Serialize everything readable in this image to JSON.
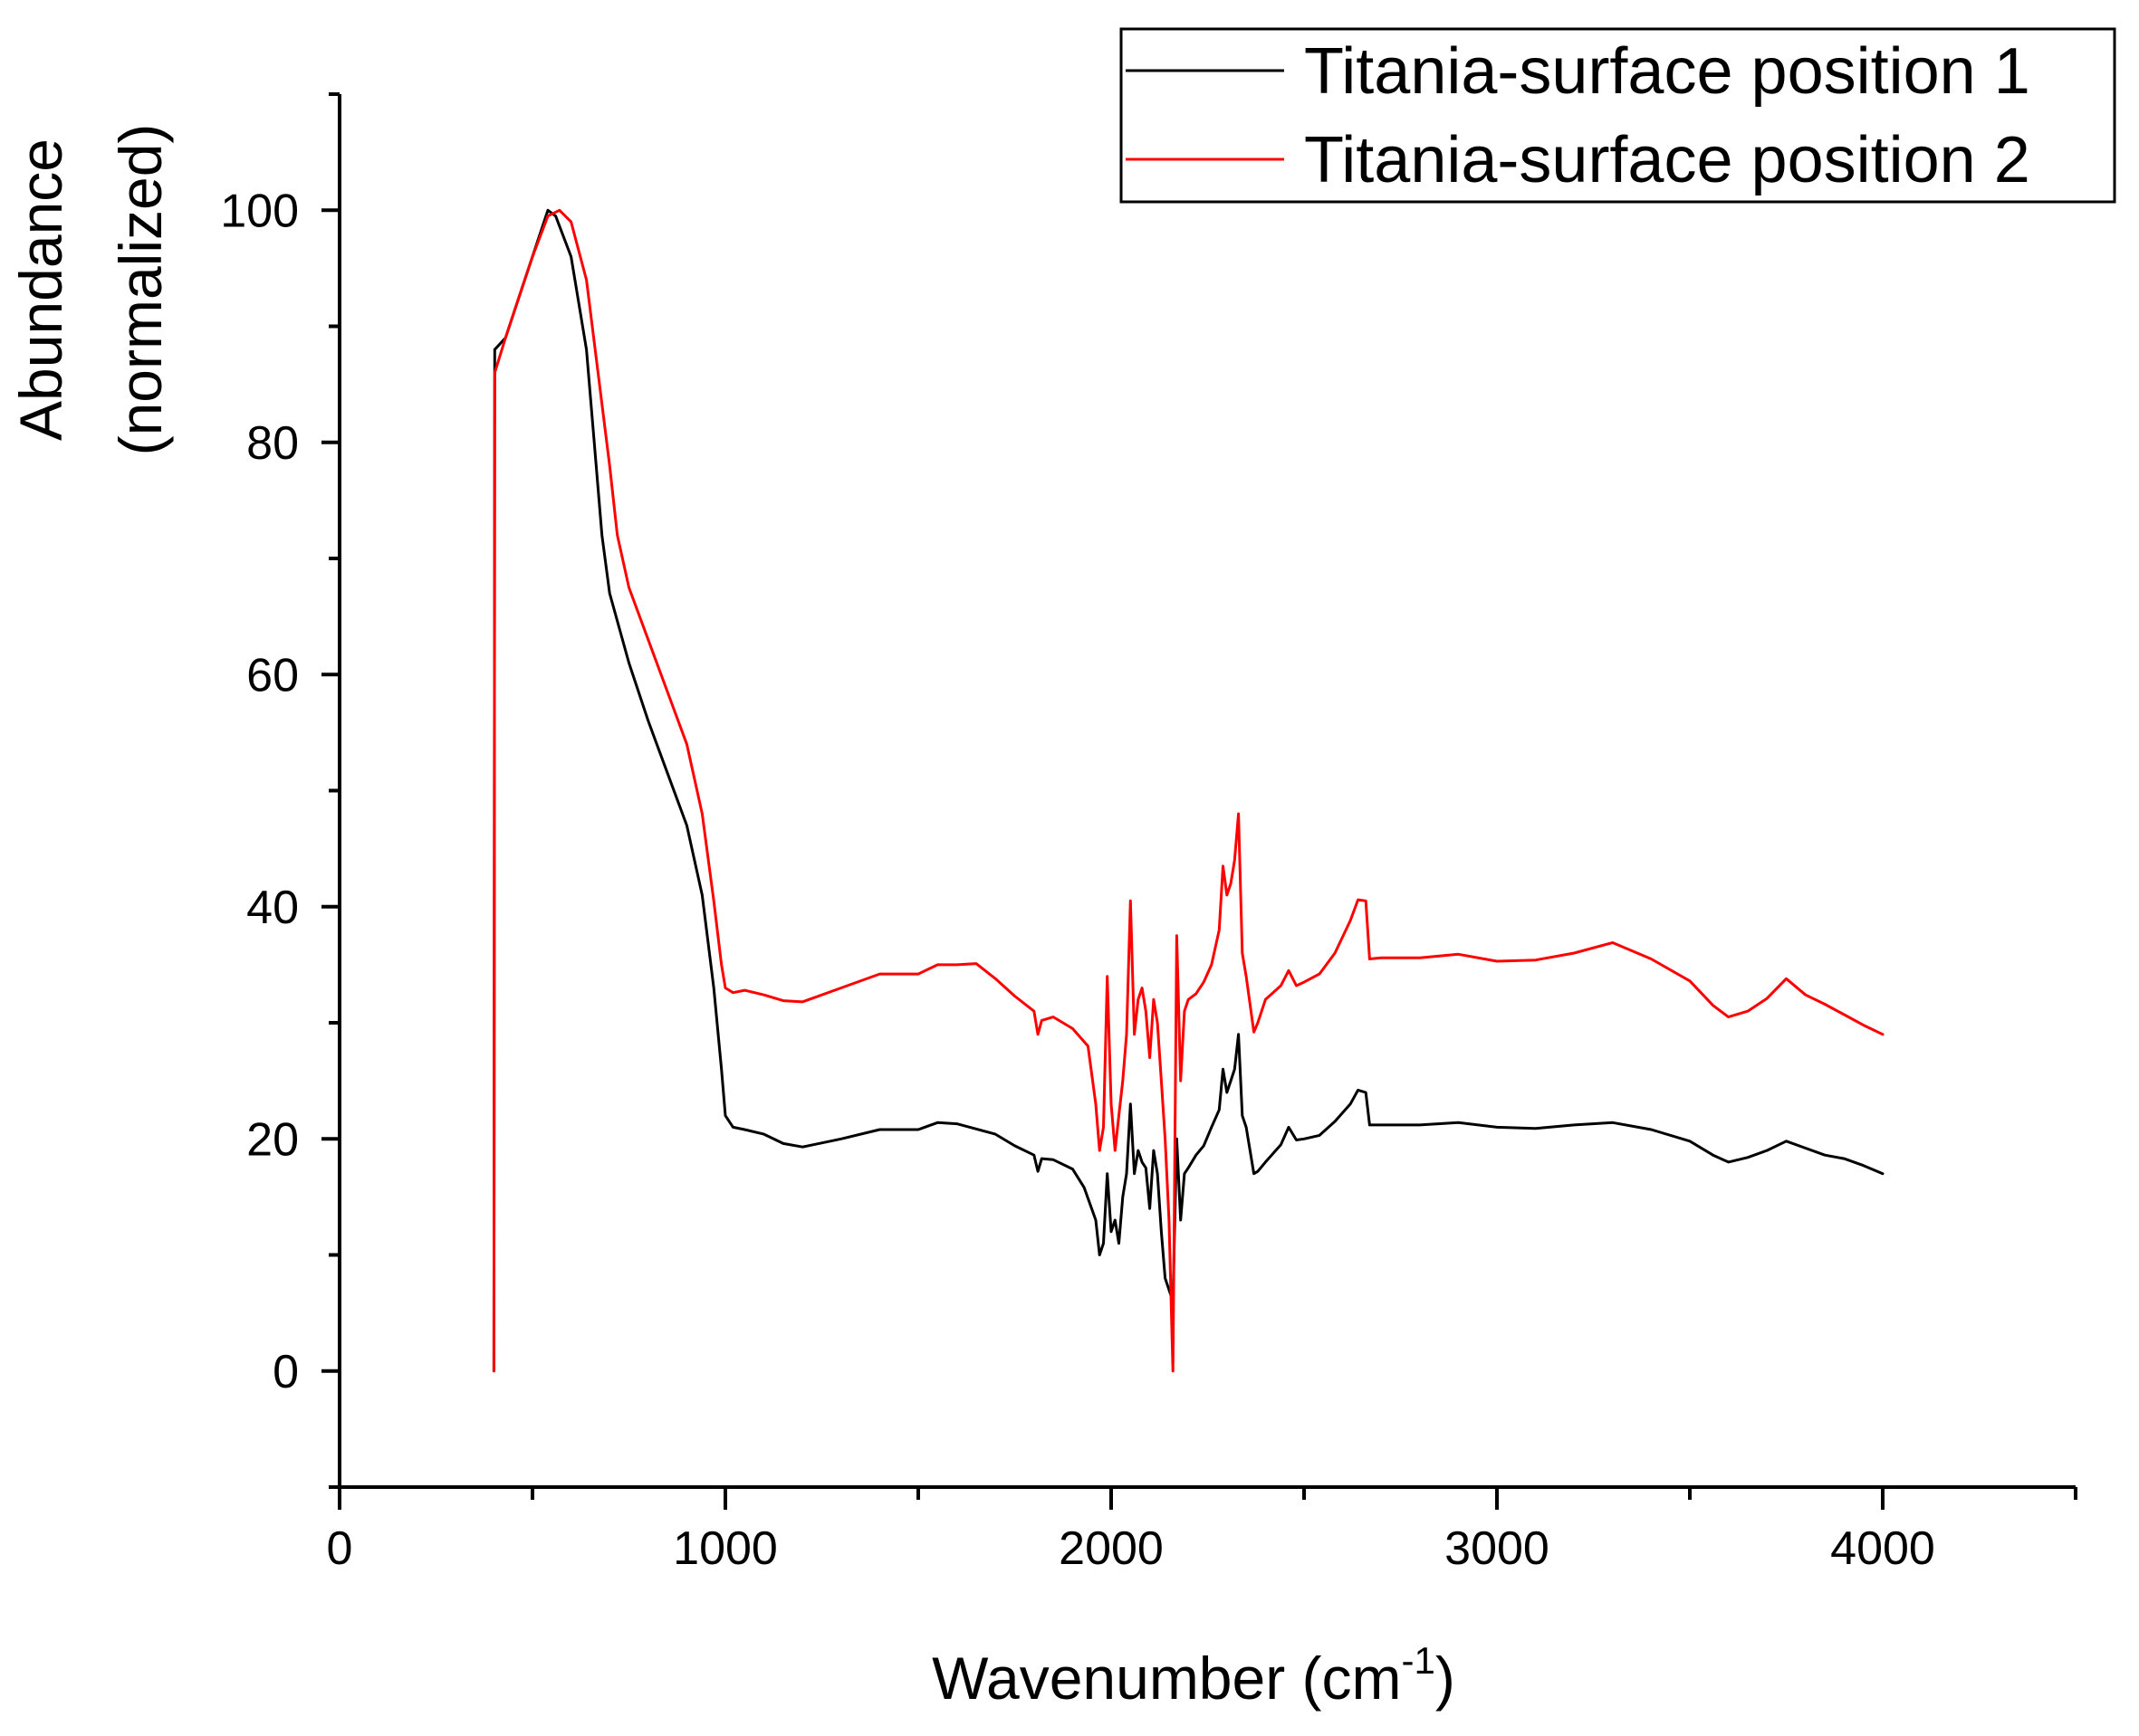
{
  "chart_data": {
    "type": "line",
    "title": "",
    "xlabel": "Wavenumber (cm",
    "xlabel_superscript": "-1",
    "xlabel_close": ")",
    "ylabel_line1": "Abundance",
    "ylabel_line2": "(normalized)",
    "xlim": [
      0,
      4500
    ],
    "ylim": [
      -10,
      110
    ],
    "x_ticks": [
      0,
      1000,
      2000,
      3000,
      4000
    ],
    "x_minor_ticks": [
      500,
      1500,
      2500,
      3500,
      4500
    ],
    "x_tick_labels": [
      "0",
      "1000",
      "2000",
      "3000",
      "4000"
    ],
    "y_ticks": [
      0,
      20,
      40,
      60,
      80,
      100
    ],
    "y_minor_ticks": [
      -10,
      10,
      30,
      50,
      70,
      90,
      110
    ],
    "y_tick_labels": [
      "0",
      "20",
      "40",
      "60",
      "80",
      "100"
    ],
    "grid": false,
    "legend_position": "top-right",
    "series": [
      {
        "name": "Titania-surface position 1",
        "color": "#000000",
        "points": [
          [
            400,
            0
          ],
          [
            402,
            88
          ],
          [
            430,
            89
          ],
          [
            470,
            93
          ],
          [
            500,
            96
          ],
          [
            540,
            100
          ],
          [
            560,
            99.5
          ],
          [
            600,
            96
          ],
          [
            640,
            88
          ],
          [
            660,
            80
          ],
          [
            680,
            72
          ],
          [
            700,
            67
          ],
          [
            750,
            61
          ],
          [
            800,
            56
          ],
          [
            850,
            51.5
          ],
          [
            900,
            47
          ],
          [
            940,
            41
          ],
          [
            970,
            33
          ],
          [
            990,
            26
          ],
          [
            1000,
            22
          ],
          [
            1020,
            21
          ],
          [
            1050,
            20.8
          ],
          [
            1100,
            20.4
          ],
          [
            1150,
            19.6
          ],
          [
            1200,
            19.3
          ],
          [
            1300,
            20
          ],
          [
            1400,
            20.8
          ],
          [
            1500,
            20.8
          ],
          [
            1550,
            21.4
          ],
          [
            1600,
            21.3
          ],
          [
            1700,
            20.4
          ],
          [
            1750,
            19.4
          ],
          [
            1800,
            18.6
          ],
          [
            1810,
            17.2
          ],
          [
            1820,
            18.3
          ],
          [
            1850,
            18.2
          ],
          [
            1900,
            17.4
          ],
          [
            1930,
            15.8
          ],
          [
            1960,
            13
          ],
          [
            1970,
            10
          ],
          [
            1980,
            11
          ],
          [
            1990,
            17
          ],
          [
            2000,
            12
          ],
          [
            2010,
            13
          ],
          [
            2020,
            11
          ],
          [
            2030,
            15
          ],
          [
            2040,
            17
          ],
          [
            2050,
            23
          ],
          [
            2060,
            17
          ],
          [
            2070,
            19
          ],
          [
            2080,
            18
          ],
          [
            2090,
            17.5
          ],
          [
            2100,
            14
          ],
          [
            2110,
            19
          ],
          [
            2120,
            17
          ],
          [
            2130,
            12
          ],
          [
            2140,
            8
          ],
          [
            2150,
            7
          ],
          [
            2160,
            6
          ],
          [
            2170,
            20
          ],
          [
            2180,
            13
          ],
          [
            2190,
            17
          ],
          [
            2200,
            17.5
          ],
          [
            2220,
            18.6
          ],
          [
            2240,
            19.4
          ],
          [
            2260,
            21
          ],
          [
            2280,
            22.5
          ],
          [
            2290,
            26
          ],
          [
            2300,
            24
          ],
          [
            2310,
            25
          ],
          [
            2320,
            26
          ],
          [
            2330,
            29
          ],
          [
            2340,
            22
          ],
          [
            2350,
            21
          ],
          [
            2370,
            17
          ],
          [
            2380,
            17.2
          ],
          [
            2400,
            18
          ],
          [
            2440,
            19.5
          ],
          [
            2460,
            21
          ],
          [
            2480,
            19.9
          ],
          [
            2500,
            20
          ],
          [
            2540,
            20.3
          ],
          [
            2580,
            21.5
          ],
          [
            2620,
            23
          ],
          [
            2640,
            24.2
          ],
          [
            2660,
            24
          ],
          [
            2670,
            21.2
          ],
          [
            2700,
            21.2
          ],
          [
            2800,
            21.2
          ],
          [
            2900,
            21.4
          ],
          [
            3000,
            21
          ],
          [
            3100,
            20.9
          ],
          [
            3200,
            21.2
          ],
          [
            3300,
            21.4
          ],
          [
            3400,
            20.8
          ],
          [
            3500,
            19.8
          ],
          [
            3560,
            18.6
          ],
          [
            3600,
            18
          ],
          [
            3650,
            18.4
          ],
          [
            3700,
            19
          ],
          [
            3750,
            19.8
          ],
          [
            3800,
            19.2
          ],
          [
            3850,
            18.6
          ],
          [
            3900,
            18.3
          ],
          [
            3950,
            17.7
          ],
          [
            4000,
            17
          ]
        ]
      },
      {
        "name": "Titania-surface position 2",
        "color": "#ff0000",
        "points": [
          [
            400,
            0
          ],
          [
            402,
            86
          ],
          [
            430,
            89
          ],
          [
            470,
            93
          ],
          [
            500,
            96
          ],
          [
            540,
            99.5
          ],
          [
            570,
            100
          ],
          [
            600,
            99
          ],
          [
            640,
            94
          ],
          [
            670,
            86
          ],
          [
            700,
            78
          ],
          [
            720,
            72
          ],
          [
            750,
            67.5
          ],
          [
            800,
            63
          ],
          [
            850,
            58.5
          ],
          [
            900,
            54
          ],
          [
            940,
            48
          ],
          [
            970,
            40.5
          ],
          [
            990,
            35
          ],
          [
            1000,
            33
          ],
          [
            1020,
            32.6
          ],
          [
            1050,
            32.8
          ],
          [
            1100,
            32.4
          ],
          [
            1150,
            31.9
          ],
          [
            1200,
            31.8
          ],
          [
            1300,
            33
          ],
          [
            1400,
            34.2
          ],
          [
            1500,
            34.2
          ],
          [
            1550,
            35
          ],
          [
            1600,
            35
          ],
          [
            1650,
            35.1
          ],
          [
            1700,
            33.8
          ],
          [
            1750,
            32.3
          ],
          [
            1800,
            31
          ],
          [
            1810,
            29
          ],
          [
            1820,
            30.2
          ],
          [
            1850,
            30.5
          ],
          [
            1900,
            29.5
          ],
          [
            1940,
            28
          ],
          [
            1960,
            23
          ],
          [
            1970,
            19
          ],
          [
            1980,
            21
          ],
          [
            1990,
            34
          ],
          [
            2000,
            23
          ],
          [
            2010,
            19
          ],
          [
            2020,
            22
          ],
          [
            2030,
            25
          ],
          [
            2040,
            29
          ],
          [
            2050,
            40.5
          ],
          [
            2060,
            29
          ],
          [
            2070,
            32
          ],
          [
            2080,
            33
          ],
          [
            2090,
            31
          ],
          [
            2100,
            27
          ],
          [
            2110,
            32
          ],
          [
            2120,
            30
          ],
          [
            2130,
            25
          ],
          [
            2140,
            20
          ],
          [
            2150,
            13
          ],
          [
            2160,
            0
          ],
          [
            2170,
            37.5
          ],
          [
            2180,
            25
          ],
          [
            2190,
            31
          ],
          [
            2200,
            32
          ],
          [
            2220,
            32.5
          ],
          [
            2240,
            33.5
          ],
          [
            2260,
            35
          ],
          [
            2280,
            38
          ],
          [
            2290,
            43.5
          ],
          [
            2300,
            41
          ],
          [
            2310,
            42
          ],
          [
            2320,
            44
          ],
          [
            2330,
            48
          ],
          [
            2340,
            36
          ],
          [
            2350,
            34
          ],
          [
            2370,
            29.2
          ],
          [
            2380,
            30
          ],
          [
            2400,
            32
          ],
          [
            2440,
            33.2
          ],
          [
            2460,
            34.5
          ],
          [
            2480,
            33.2
          ],
          [
            2500,
            33.5
          ],
          [
            2540,
            34.2
          ],
          [
            2580,
            36
          ],
          [
            2620,
            38.8
          ],
          [
            2640,
            40.6
          ],
          [
            2660,
            40.5
          ],
          [
            2670,
            35.5
          ],
          [
            2700,
            35.6
          ],
          [
            2800,
            35.6
          ],
          [
            2900,
            35.9
          ],
          [
            3000,
            35.3
          ],
          [
            3100,
            35.4
          ],
          [
            3200,
            36
          ],
          [
            3300,
            36.9
          ],
          [
            3400,
            35.5
          ],
          [
            3500,
            33.6
          ],
          [
            3560,
            31.5
          ],
          [
            3600,
            30.5
          ],
          [
            3650,
            31
          ],
          [
            3700,
            32.1
          ],
          [
            3750,
            33.8
          ],
          [
            3800,
            32.4
          ],
          [
            3850,
            31.6
          ],
          [
            3900,
            30.7
          ],
          [
            3950,
            29.8
          ],
          [
            4000,
            29
          ]
        ]
      }
    ]
  }
}
